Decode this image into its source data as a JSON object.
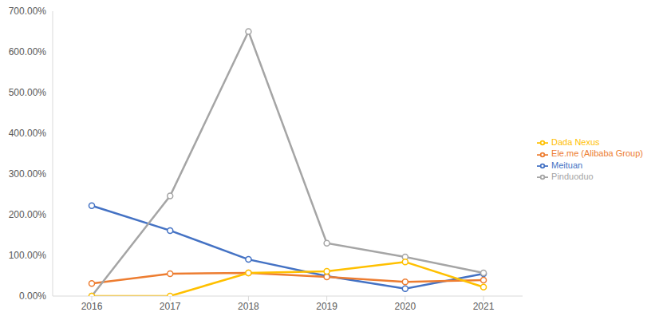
{
  "chart_data": {
    "type": "line",
    "categories": [
      "2016",
      "2017",
      "2018",
      "2019",
      "2020",
      "2021"
    ],
    "series": [
      {
        "name": "Meituan",
        "color": "#4472c4",
        "values": [
          222,
          161,
          90,
          49,
          18,
          55
        ]
      },
      {
        "name": "Ele.me (Alibaba Group)",
        "color": "#ed7d31",
        "values": [
          31,
          55,
          57,
          47,
          35,
          39
        ]
      },
      {
        "name": "Pinduoduo",
        "color": "#a5a5a5",
        "values": [
          0,
          246,
          650,
          130,
          96,
          57
        ]
      },
      {
        "name": "Dada Nexus",
        "color": "#ffc000",
        "values": [
          0,
          0,
          57,
          61,
          84,
          22
        ]
      }
    ],
    "ylim": [
      0,
      700
    ],
    "yticks": [
      {
        "value": 0,
        "label": "0.00%"
      },
      {
        "value": 100,
        "label": "100.00%"
      },
      {
        "value": 200,
        "label": "200.00%"
      },
      {
        "value": 300,
        "label": "300.00%"
      },
      {
        "value": 400,
        "label": "400.00%"
      },
      {
        "value": 500,
        "label": "500.00%"
      },
      {
        "value": 600,
        "label": "600.00%"
      },
      {
        "value": 700,
        "label": "700.00%"
      }
    ],
    "grid": false,
    "legend": "right",
    "marker": "circle"
  }
}
